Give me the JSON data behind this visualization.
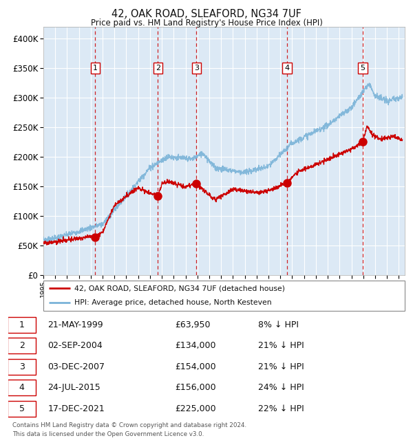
{
  "title": "42, OAK ROAD, SLEAFORD, NG34 7UF",
  "subtitle": "Price paid vs. HM Land Registry's House Price Index (HPI)",
  "plot_bg_color": "#dce9f5",
  "grid_color": "#ffffff",
  "red_line_color": "#cc0000",
  "blue_line_color": "#7ab3d8",
  "marker_color": "#cc0000",
  "dashed_line_color": "#cc0000",
  "ylim": [
    0,
    420000
  ],
  "yticks": [
    0,
    50000,
    100000,
    150000,
    200000,
    250000,
    300000,
    350000,
    400000
  ],
  "ytick_labels": [
    "£0",
    "£50K",
    "£100K",
    "£150K",
    "£200K",
    "£250K",
    "£300K",
    "£350K",
    "£400K"
  ],
  "sale_points": [
    {
      "label": "1",
      "year": 1999.38,
      "price": 63950
    },
    {
      "label": "2",
      "year": 2004.67,
      "price": 134000
    },
    {
      "label": "3",
      "year": 2007.92,
      "price": 154000
    },
    {
      "label": "4",
      "year": 2015.56,
      "price": 156000
    },
    {
      "label": "5",
      "year": 2021.96,
      "price": 225000
    }
  ],
  "legend_red_label": "42, OAK ROAD, SLEAFORD, NG34 7UF (detached house)",
  "legend_blue_label": "HPI: Average price, detached house, North Kesteven",
  "footer_text": "Contains HM Land Registry data © Crown copyright and database right 2024.\nThis data is licensed under the Open Government Licence v3.0.",
  "table_rows": [
    {
      "num": "1",
      "date": "21-MAY-1999",
      "price": "£63,950",
      "pct": "8% ↓ HPI"
    },
    {
      "num": "2",
      "date": "02-SEP-2004",
      "price": "£134,000",
      "pct": "21% ↓ HPI"
    },
    {
      "num": "3",
      "date": "03-DEC-2007",
      "price": "£154,000",
      "pct": "21% ↓ HPI"
    },
    {
      "num": "4",
      "date": "24-JUL-2015",
      "price": "£156,000",
      "pct": "24% ↓ HPI"
    },
    {
      "num": "5",
      "date": "17-DEC-2021",
      "price": "£225,000",
      "pct": "22% ↓ HPI"
    }
  ]
}
